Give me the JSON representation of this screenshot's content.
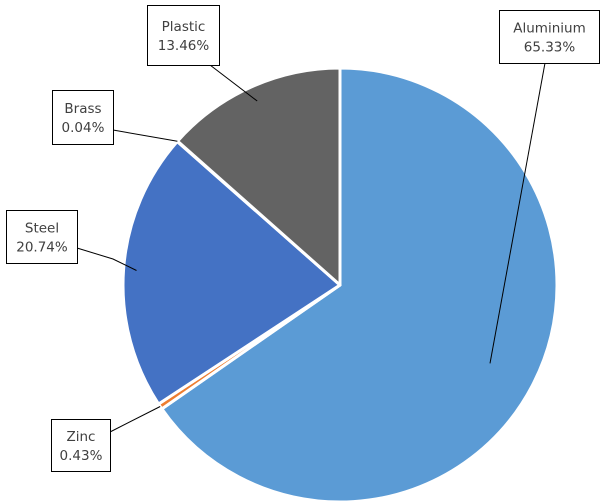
{
  "chart_data": {
    "type": "pie",
    "title": "",
    "start_angle_deg": 0,
    "direction": "clockwise",
    "legend": "none",
    "slices": [
      {
        "name": "Aluminium",
        "value": 65.33,
        "label": "65.33%",
        "color": "#5b9bd5"
      },
      {
        "name": "Zinc",
        "value": 0.43,
        "label": "0.43%",
        "color": "#ed7d31"
      },
      {
        "name": "Steel",
        "value": 20.74,
        "label": "20.74%",
        "color": "#4472c4"
      },
      {
        "name": "Brass",
        "value": 0.04,
        "label": "0.04%",
        "color": "#ffc000"
      },
      {
        "name": "Plastic",
        "value": 13.46,
        "label": "13.46%",
        "color": "#636363"
      }
    ]
  }
}
